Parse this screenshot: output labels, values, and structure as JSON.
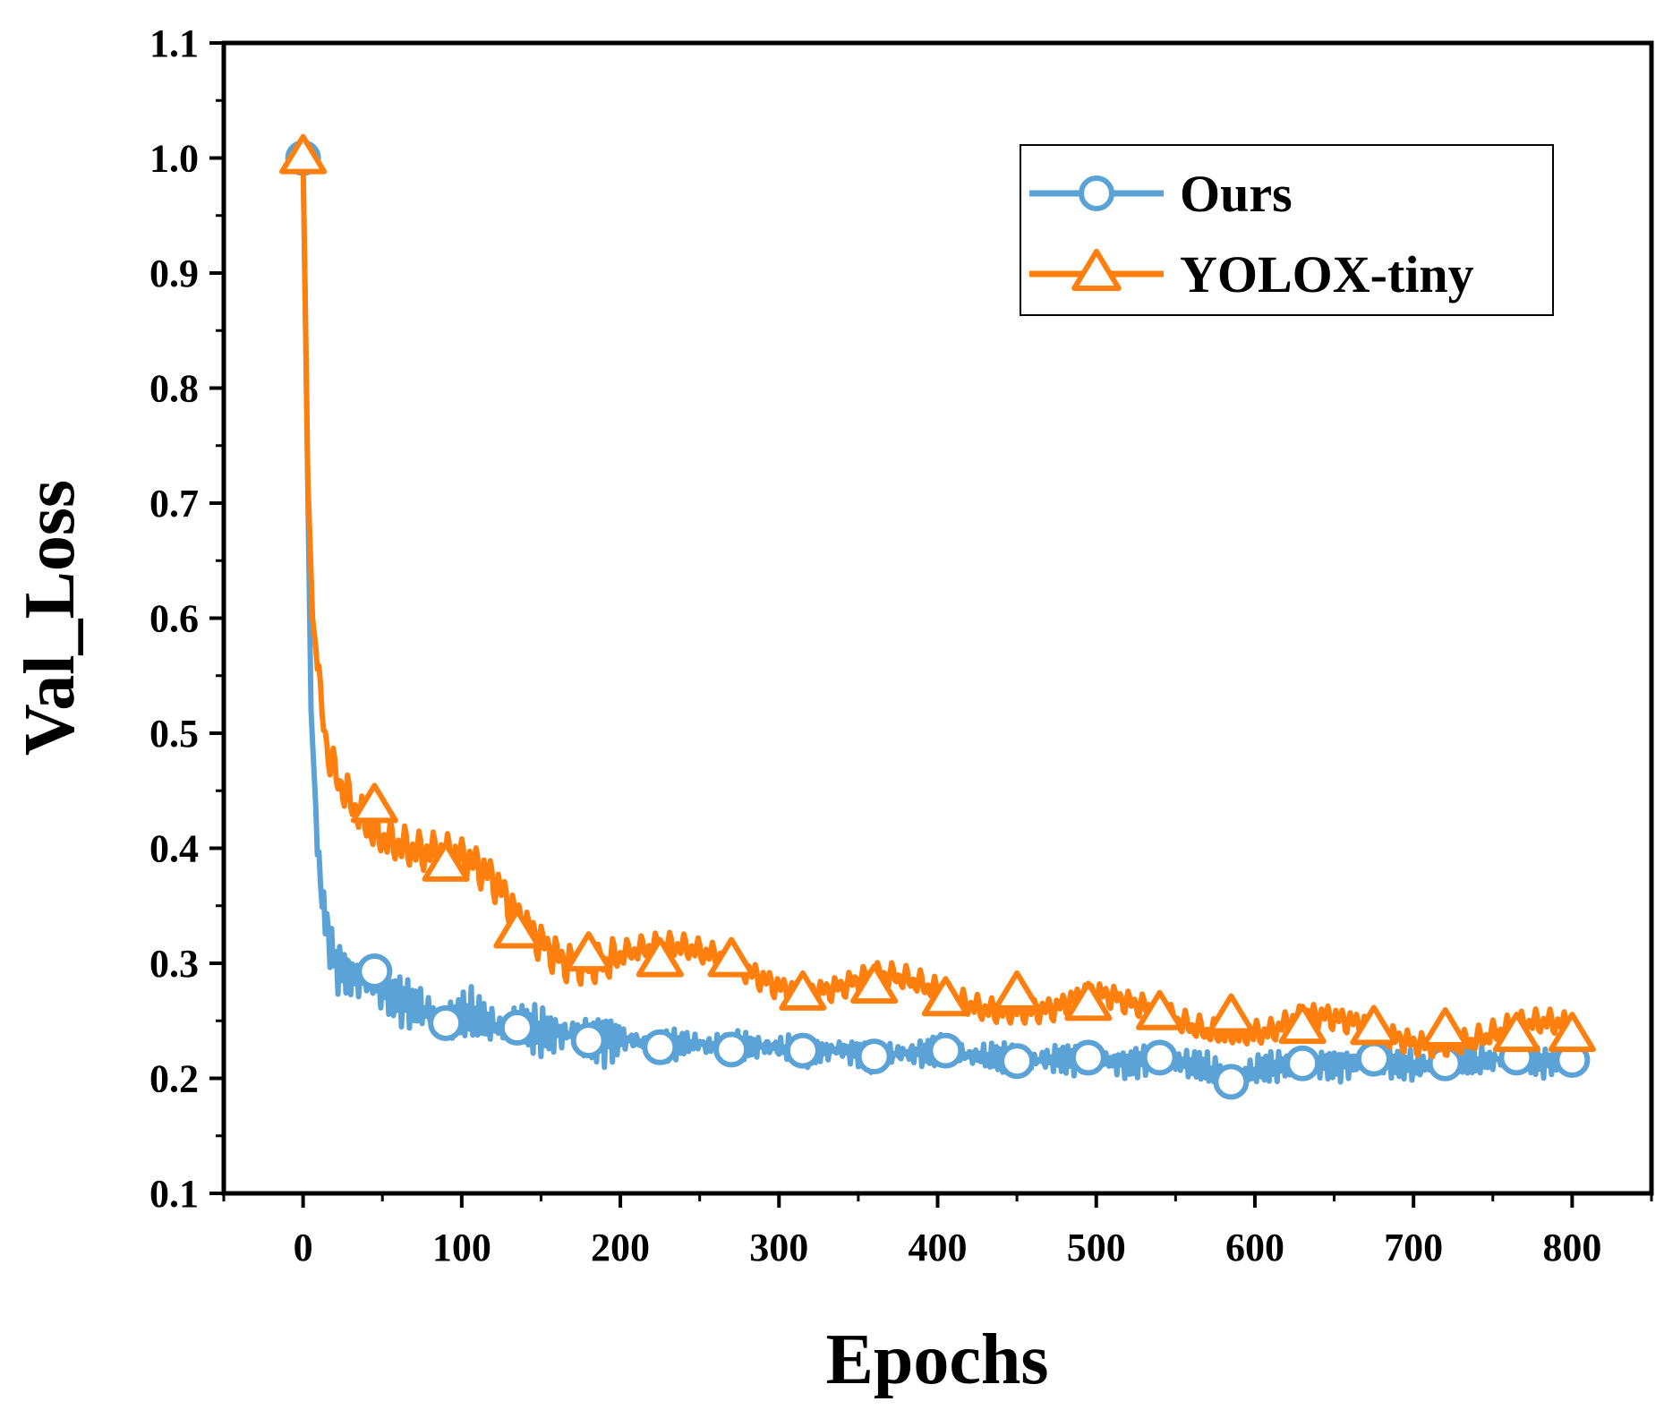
{
  "chart_data": {
    "type": "line",
    "title": "",
    "xlabel": "Epochs",
    "ylabel": "Val_Loss",
    "xlim": [
      -50,
      850
    ],
    "ylim": [
      0.1,
      1.1
    ],
    "xticks": [
      0,
      100,
      200,
      300,
      400,
      500,
      600,
      700,
      800
    ],
    "yticks": [
      0.1,
      0.2,
      0.3,
      0.4,
      0.5,
      0.6,
      0.7,
      0.8,
      0.9,
      1.0,
      1.1
    ],
    "xtick_labels": [
      "0",
      "100",
      "200",
      "300",
      "400",
      "500",
      "600",
      "700",
      "800"
    ],
    "ytick_labels": [
      "0.1",
      "0.2",
      "0.3",
      "0.4",
      "0.5",
      "0.6",
      "0.7",
      "0.8",
      "0.9",
      "1.0",
      "1.1"
    ],
    "legend_position": "top-right",
    "grid": false,
    "series": [
      {
        "name": "Ours",
        "color": "#5ba3d6",
        "marker": "circle",
        "x": [
          0,
          5,
          10,
          15,
          20,
          30,
          45,
          60,
          75,
          90,
          105,
          120,
          135,
          150,
          165,
          180,
          200,
          225,
          250,
          270,
          290,
          315,
          340,
          360,
          380,
          405,
          430,
          450,
          475,
          495,
          520,
          540,
          565,
          585,
          610,
          630,
          655,
          675,
          700,
          720,
          745,
          765,
          785,
          800
        ],
        "values": [
          1.0,
          0.52,
          0.38,
          0.33,
          0.3,
          0.29,
          0.28,
          0.27,
          0.26,
          0.25,
          0.255,
          0.245,
          0.245,
          0.24,
          0.24,
          0.235,
          0.235,
          0.228,
          0.23,
          0.225,
          0.228,
          0.224,
          0.225,
          0.22,
          0.222,
          0.223,
          0.218,
          0.215,
          0.217,
          0.218,
          0.213,
          0.218,
          0.21,
          0.2,
          0.21,
          0.213,
          0.212,
          0.217,
          0.21,
          0.213,
          0.215,
          0.218,
          0.214,
          0.216
        ],
        "marker_x": [
          0,
          45,
          90,
          135,
          180,
          225,
          270,
          315,
          360,
          405,
          450,
          495,
          540,
          585,
          630,
          675,
          720,
          765,
          800
        ],
        "marker_values": [
          1.0,
          0.293,
          0.248,
          0.244,
          0.233,
          0.227,
          0.225,
          0.224,
          0.219,
          0.224,
          0.215,
          0.218,
          0.218,
          0.197,
          0.213,
          0.217,
          0.213,
          0.218,
          0.216
        ]
      },
      {
        "name": "YOLOX-tiny",
        "color": "#ff7f0e",
        "marker": "triangle",
        "x": [
          0,
          3,
          6,
          10,
          15,
          20,
          30,
          45,
          60,
          75,
          90,
          105,
          120,
          135,
          150,
          165,
          180,
          200,
          225,
          250,
          270,
          290,
          315,
          340,
          360,
          380,
          405,
          430,
          450,
          475,
          495,
          520,
          540,
          565,
          585,
          610,
          630,
          655,
          675,
          700,
          720,
          745,
          765,
          785,
          800
        ],
        "values": [
          1.0,
          0.72,
          0.6,
          0.55,
          0.5,
          0.48,
          0.46,
          0.43,
          0.41,
          0.39,
          0.38,
          0.37,
          0.36,
          0.34,
          0.33,
          0.32,
          0.315,
          0.31,
          0.305,
          0.3,
          0.3,
          0.295,
          0.285,
          0.28,
          0.28,
          0.275,
          0.27,
          0.27,
          0.27,
          0.262,
          0.265,
          0.255,
          0.255,
          0.253,
          0.25,
          0.242,
          0.245,
          0.24,
          0.24,
          0.24,
          0.24,
          0.238,
          0.237,
          0.237,
          0.237
        ],
        "marker_x": [
          0,
          45,
          90,
          135,
          180,
          225,
          270,
          315,
          360,
          405,
          450,
          495,
          540,
          585,
          630,
          675,
          720,
          765,
          800
        ],
        "marker_values": [
          1.0,
          0.436,
          0.385,
          0.327,
          0.307,
          0.302,
          0.302,
          0.273,
          0.279,
          0.268,
          0.273,
          0.264,
          0.256,
          0.253,
          0.244,
          0.243,
          0.241,
          0.237,
          0.237
        ]
      }
    ]
  }
}
